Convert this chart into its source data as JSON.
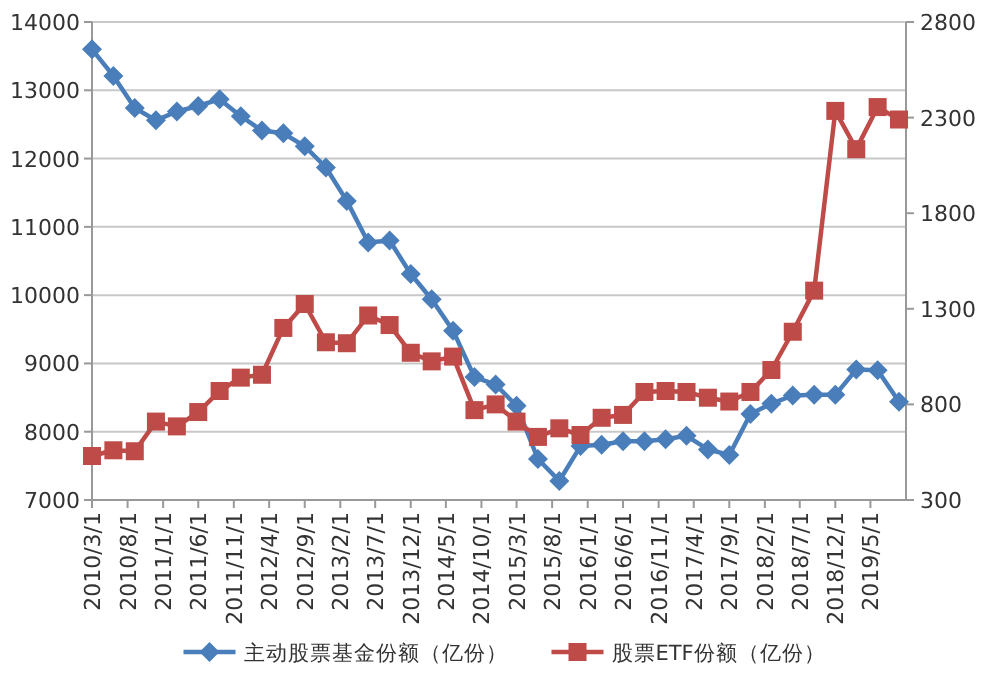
{
  "chart_data": {
    "type": "line",
    "x": [
      "2010-03-01",
      "2010-06-01",
      "2010-09-01",
      "2010-12-01",
      "2011-03-01",
      "2011-06-01",
      "2011-09-01",
      "2011-12-01",
      "2012-03-01",
      "2012-06-01",
      "2012-09-01",
      "2012-12-01",
      "2013-03-01",
      "2013-06-01",
      "2013-09-01",
      "2013-12-01",
      "2014-03-01",
      "2014-06-01",
      "2014-09-01",
      "2014-12-01",
      "2015-03-01",
      "2015-06-01",
      "2015-09-01",
      "2015-12-01",
      "2016-03-01",
      "2016-06-01",
      "2016-09-01",
      "2016-12-01",
      "2017-03-01",
      "2017-06-01",
      "2017-09-01",
      "2017-12-01",
      "2018-03-01",
      "2018-06-01",
      "2018-09-01",
      "2018-12-01",
      "2019-03-01",
      "2019-06-01",
      "2019-09-01"
    ],
    "series": [
      {
        "name": "主动股票基金份额（亿份）",
        "color": "#4a7ebb",
        "marker": "diamond",
        "values": [
          13600,
          13210,
          12740,
          12560,
          12690,
          12770,
          12870,
          12620,
          12410,
          12370,
          12180,
          11870,
          11380,
          10770,
          10800,
          10310,
          9940,
          9480,
          8800,
          8690,
          8380,
          7600,
          7280,
          7790,
          7810,
          7860,
          7860,
          7890,
          7940,
          7740,
          7660,
          8260,
          8410,
          8530,
          8540,
          8540,
          8910,
          8900,
          8440
        ]
      },
      {
        "name": "股票ETF份额（亿份）",
        "color": "#be4b48",
        "marker": "square",
        "axis": "y2",
        "values": [
          530,
          560,
          555,
          710,
          685,
          760,
          870,
          940,
          955,
          1200,
          1325,
          1125,
          1120,
          1265,
          1215,
          1070,
          1025,
          1050,
          770,
          800,
          710,
          630,
          675,
          640,
          730,
          745,
          865,
          870,
          865,
          835,
          815,
          865,
          980,
          1180,
          1395,
          2335,
          2135,
          2355,
          2290
        ]
      }
    ],
    "xlim": [
      "2010-03-01",
      "2019-10-01"
    ],
    "xticks": [
      {
        "value": "2010-03-01",
        "label": "2010/3/1"
      },
      {
        "value": "2010-08-01",
        "label": "2010/8/1"
      },
      {
        "value": "2011-01-01",
        "label": "2011/1/1"
      },
      {
        "value": "2011-06-01",
        "label": "2011/6/1"
      },
      {
        "value": "2011-11-01",
        "label": "2011/11/1"
      },
      {
        "value": "2012-04-01",
        "label": "2012/4/1"
      },
      {
        "value": "2012-09-01",
        "label": "2012/9/1"
      },
      {
        "value": "2013-02-01",
        "label": "2013/2/1"
      },
      {
        "value": "2013-07-01",
        "label": "2013/7/1"
      },
      {
        "value": "2013-12-01",
        "label": "2013/12/1"
      },
      {
        "value": "2014-05-01",
        "label": "2014/5/1"
      },
      {
        "value": "2014-10-01",
        "label": "2014/10/1"
      },
      {
        "value": "2015-03-01",
        "label": "2015/3/1"
      },
      {
        "value": "2015-08-01",
        "label": "2015/8/1"
      },
      {
        "value": "2016-01-01",
        "label": "2016/1/1"
      },
      {
        "value": "2016-06-01",
        "label": "2016/6/1"
      },
      {
        "value": "2016-11-01",
        "label": "2016/11/1"
      },
      {
        "value": "2017-04-01",
        "label": "2017/4/1"
      },
      {
        "value": "2017-09-01",
        "label": "2017/9/1"
      },
      {
        "value": "2018-02-01",
        "label": "2018/2/1"
      },
      {
        "value": "2018-07-01",
        "label": "2018/7/1"
      },
      {
        "value": "2018-12-01",
        "label": "2018/12/1"
      },
      {
        "value": "2019-05-01",
        "label": "2019/5/1"
      }
    ],
    "ylim": [
      7000,
      14000
    ],
    "yticks": [
      7000,
      8000,
      9000,
      10000,
      11000,
      12000,
      13000,
      14000
    ],
    "y2lim": [
      300,
      2800
    ],
    "y2ticks": [
      300,
      800,
      1300,
      1800,
      2300,
      2800
    ],
    "grid": "y",
    "legend": "bottom",
    "line_style": "solid"
  }
}
